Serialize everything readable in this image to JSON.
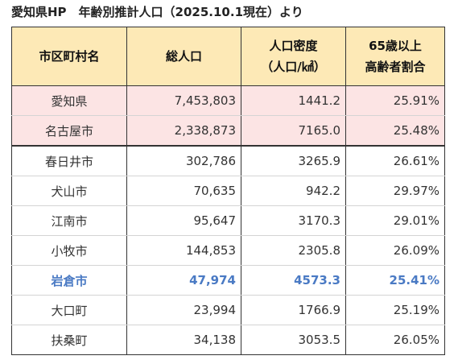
{
  "title": "愛知県HP　年齢別推計人口（2025.10.1現在）より",
  "headers": {
    "name": "市区町村名",
    "population": "総人口",
    "density_line1": "人口密度",
    "density_line2": "（人口/㎢）",
    "elderly_line1": "65歳以上",
    "elderly_line2": "高齢者割合"
  },
  "rows": [
    {
      "name": "愛知県",
      "population": "7,453,803",
      "density": "1441.2",
      "elderly": "25.91%"
    },
    {
      "name": "名古屋市",
      "population": "2,338,873",
      "density": "7165.0",
      "elderly": "25.48%"
    },
    {
      "name": "春日井市",
      "population": "302,786",
      "density": "3265.9",
      "elderly": "26.61%"
    },
    {
      "name": "犬山市",
      "population": "70,635",
      "density": "942.2",
      "elderly": "29.97%"
    },
    {
      "name": "江南市",
      "population": "95,647",
      "density": "3170.3",
      "elderly": "29.01%"
    },
    {
      "name": "小牧市",
      "population": "144,853",
      "density": "2305.8",
      "elderly": "26.09%"
    },
    {
      "name": "岩倉市",
      "population": "47,974",
      "density": "4573.3",
      "elderly": "25.41%"
    },
    {
      "name": "大口町",
      "population": "23,994",
      "density": "1766.9",
      "elderly": "25.19%"
    },
    {
      "name": "扶桑町",
      "population": "34,138",
      "density": "3053.5",
      "elderly": "26.05%"
    }
  ],
  "colors": {
    "header_bg": "#fde9b6",
    "prefecture_row_bg": "#fce4e4",
    "highlight_text": "#4a7ac4"
  }
}
